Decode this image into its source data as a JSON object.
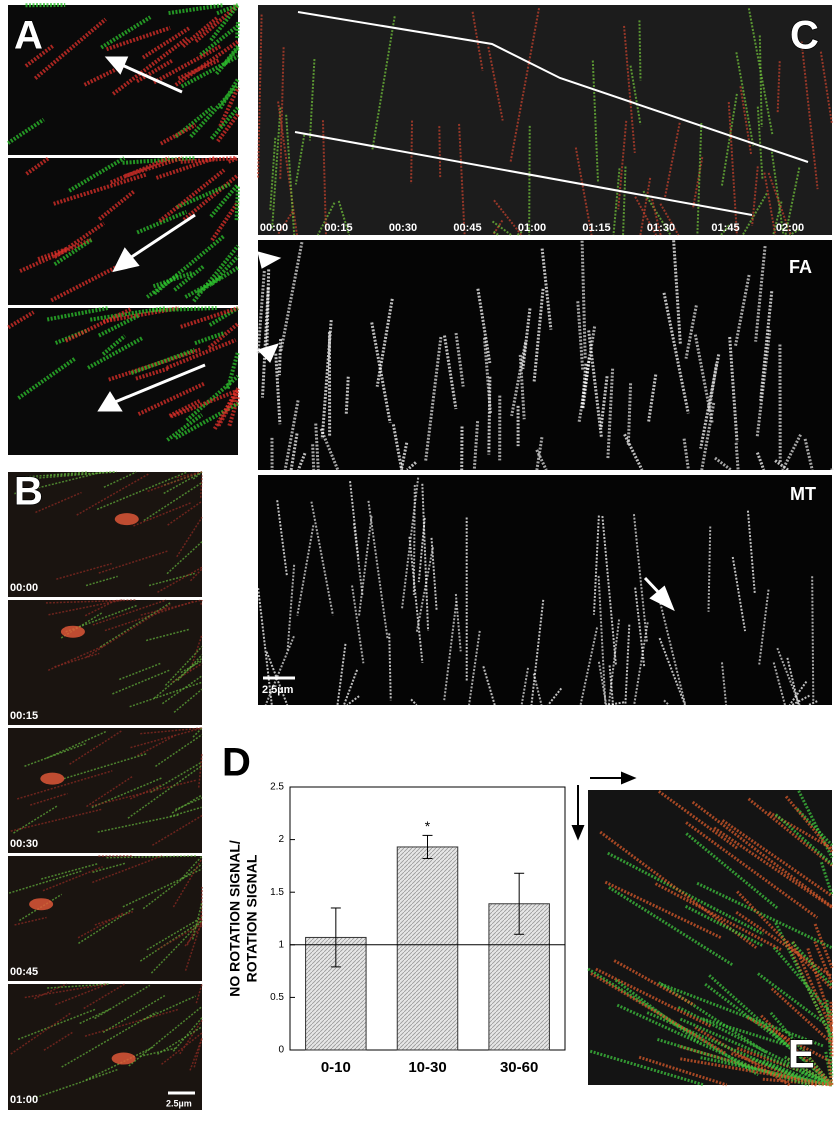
{
  "panel_a": {
    "label": "A"
  },
  "panel_b": {
    "label": "B",
    "timestamps": [
      "00:00",
      "00:15",
      "00:30",
      "00:45",
      "01:00"
    ],
    "scale_bar": "2.5µm"
  },
  "panel_c": {
    "label": "C",
    "times": [
      "00:00",
      "00:15",
      "00:30",
      "00:45",
      "01:00",
      "01:15",
      "01:30",
      "01:45",
      "02:00"
    ],
    "channels": [
      "FA",
      "MT"
    ],
    "scale_bar": "2.5µm"
  },
  "panel_d": {
    "label": "D"
  },
  "panel_e": {
    "label": "E"
  },
  "chart_data": {
    "type": "bar",
    "y_label": [
      "NO ROTATION SIGNAL/",
      "ROTATION SIGNAL"
    ],
    "categories": [
      "0-10",
      "10-30",
      "30-60"
    ],
    "values": [
      1.07,
      1.93,
      1.39
    ],
    "errors": [
      0.28,
      0.11,
      0.29
    ],
    "annotation": "*",
    "reference_line": 1,
    "color": "#d9d9d9",
    "ylim": [
      0,
      2.5
    ],
    "yticks": [
      0,
      0.5,
      1,
      1.5,
      2,
      2.5
    ]
  }
}
